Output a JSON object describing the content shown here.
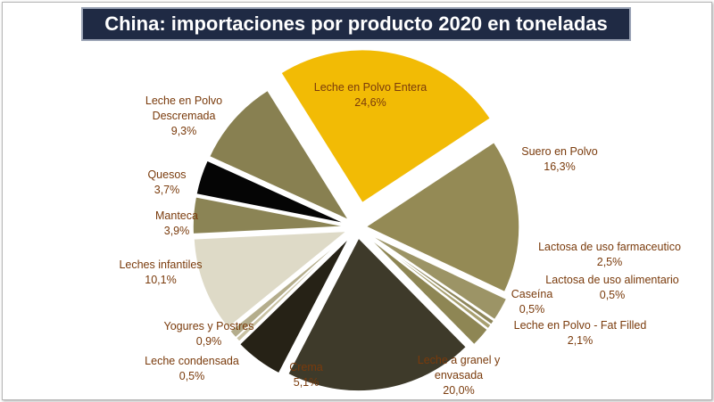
{
  "chart_data": {
    "type": "pie",
    "title": "China: importaciones por producto 2020 en toneladas",
    "exploded": true,
    "slices": [
      {
        "label": [
          "Leche en Polvo Entera"
        ],
        "pct_text": "24,6%",
        "value": 24.6,
        "color": "#f2bb05"
      },
      {
        "label": [
          "Suero en Polvo"
        ],
        "pct_text": "16,3%",
        "value": 16.3,
        "color": "#948a55"
      },
      {
        "label": [
          "Lactosa de uso farmaceutico"
        ],
        "pct_text": "2,5%",
        "value": 2.5,
        "color": "#9c9466"
      },
      {
        "label": [
          "Lactosa de uso alimentario"
        ],
        "pct_text": "0,5%",
        "value": 0.5,
        "color": "#8f875b"
      },
      {
        "label": [
          "Caseína"
        ],
        "pct_text": "0,5%",
        "value": 0.5,
        "color": "#a8a070"
      },
      {
        "label": [
          "Leche en Polvo - Fat Filled"
        ],
        "pct_text": "2,1%",
        "value": 2.1,
        "color": "#8e8654"
      },
      {
        "label": [
          "Leche a granel y",
          "envasada"
        ],
        "pct_text": "20,0%",
        "value": 20.0,
        "color": "#3e3a2a"
      },
      {
        "label": [
          "Crema"
        ],
        "pct_text": "5,1%",
        "value": 5.1,
        "color": "#262216"
      },
      {
        "label": [
          "Leche condensada"
        ],
        "pct_text": "0,5%",
        "value": 0.5,
        "color": "#c9c2a4"
      },
      {
        "label": [
          "Yogures y Postres"
        ],
        "pct_text": "0,9%",
        "value": 0.9,
        "color": "#b4ad8c"
      },
      {
        "label": [
          "Leches infantiles"
        ],
        "pct_text": "10,1%",
        "value": 10.1,
        "color": "#dedac7"
      },
      {
        "label": [
          "Manteca"
        ],
        "pct_text": "3,9%",
        "value": 3.9,
        "color": "#8b8455"
      },
      {
        "label": [
          "Quesos"
        ],
        "pct_text": "3,7%",
        "value": 3.7,
        "color": "#050505"
      },
      {
        "label": [
          "Leche en Polvo",
          "Descremada"
        ],
        "pct_text": "9,3%",
        "value": 9.3,
        "color": "#888051"
      }
    ]
  }
}
